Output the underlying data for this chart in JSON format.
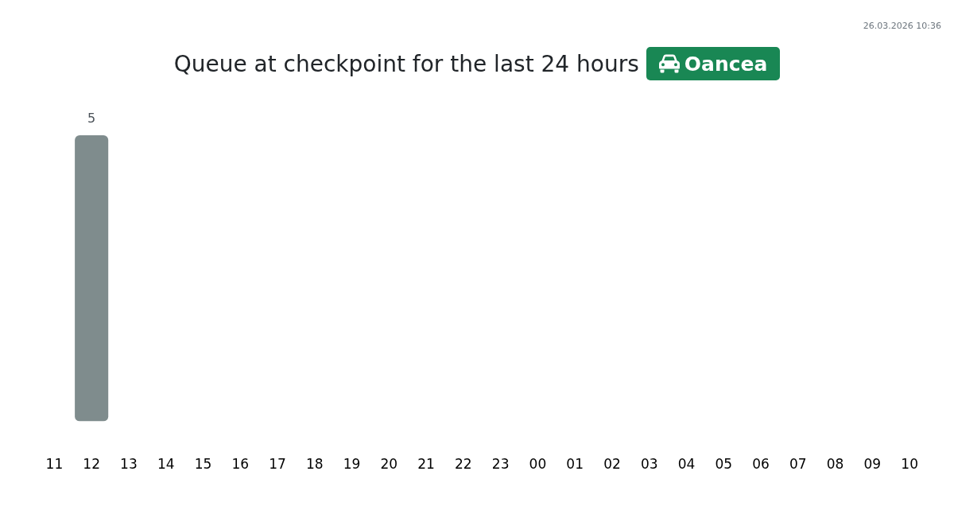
{
  "chart_data": {
    "type": "bar",
    "title": "Queue at checkpoint for the last 24 hours",
    "subtitle": "Oancea",
    "annotations": [
      "26.03.2026 10:36"
    ],
    "categories": [
      "11",
      "12",
      "13",
      "14",
      "15",
      "16",
      "17",
      "18",
      "19",
      "20",
      "21",
      "22",
      "23",
      "00",
      "01",
      "02",
      "03",
      "04",
      "05",
      "06",
      "07",
      "08",
      "09",
      "10"
    ],
    "values": [
      0,
      5,
      0,
      0,
      0,
      0,
      0,
      0,
      0,
      0,
      0,
      0,
      0,
      0,
      0,
      0,
      0,
      0,
      0,
      0,
      0,
      0,
      0,
      0
    ],
    "value_labels": [
      null,
      "5",
      null,
      null,
      null,
      null,
      null,
      null,
      null,
      null,
      null,
      null,
      null,
      null,
      null,
      null,
      null,
      null,
      null,
      null,
      null,
      null,
      null,
      null
    ],
    "color": "#7f8c8d",
    "legend": false,
    "tick_labels": "x"
  }
}
